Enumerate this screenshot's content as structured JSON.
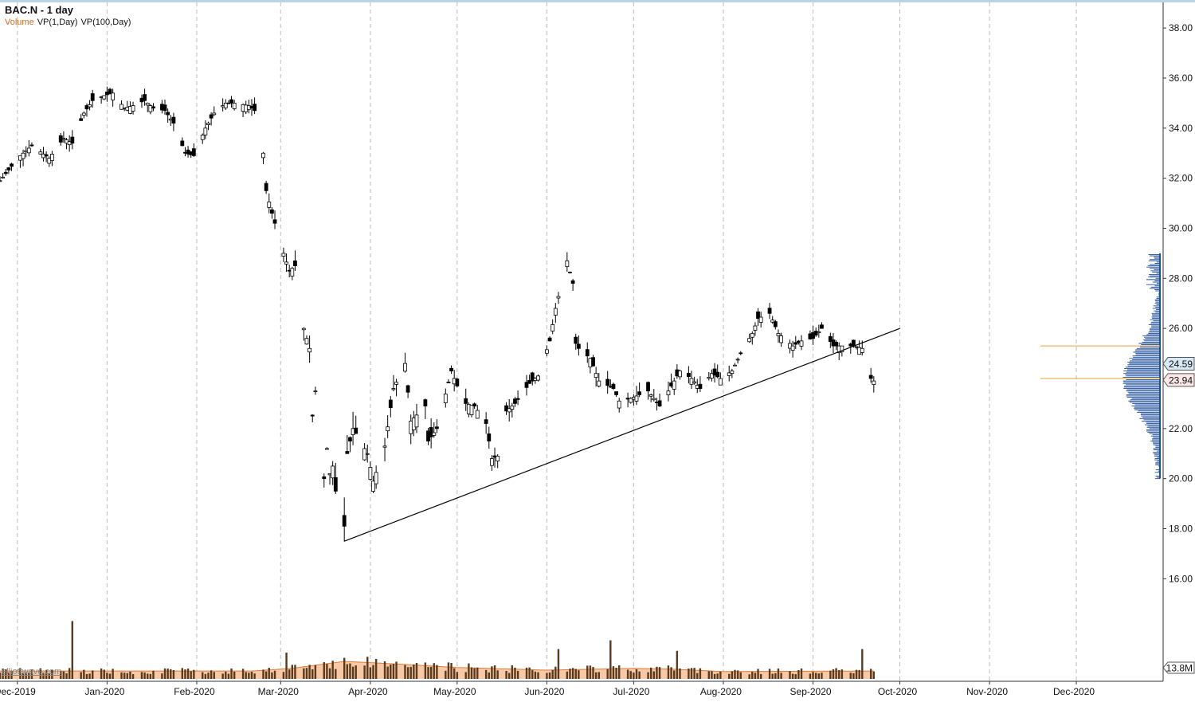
{
  "header": {
    "symbol_title": "BAC.N - 1 day",
    "indicators": [
      {
        "label": "Volume",
        "color": "#d2691e"
      },
      {
        "label": "VP(1,Day)",
        "color": "#111111"
      },
      {
        "label": "VP(100,Day)",
        "color": "#111111"
      }
    ]
  },
  "watermark": "elliottwave.com",
  "colors": {
    "up_candle": "#ffffff",
    "down_candle": "#000000",
    "wick": "#000000",
    "grid": "#bdbdbd",
    "volume_bar": "#5a3a1e",
    "volume_ma_fill": "#f7c9a6",
    "volume_ma_line": "#e07b39",
    "profile": "#1f4e9a",
    "profile_poc": "#e8a03a",
    "trendline": "#000000",
    "price_tag_bg": "#d9e8f5",
    "current_tag_bg": "#fde7e7"
  },
  "chart_data": {
    "type": "candlestick",
    "title": "BAC.N - 1 day",
    "y_axis": {
      "position": "right",
      "min": 12.0,
      "max": 38.8,
      "ticks": [
        "38.00",
        "36.00",
        "34.00",
        "32.00",
        "30.00",
        "28.00",
        "26.00",
        "24.00",
        "22.00",
        "20.00",
        "18.00",
        "16.00"
      ]
    },
    "x_axis": {
      "start": "2019-11-25",
      "end": "2020-12-31",
      "ticks": [
        {
          "label": "Dec-2019",
          "date": "2019-12-01"
        },
        {
          "label": "Jan-2020",
          "date": "2020-01-01"
        },
        {
          "label": "Feb-2020",
          "date": "2020-02-01"
        },
        {
          "label": "Mar-2020",
          "date": "2020-03-01"
        },
        {
          "label": "Apr-2020",
          "date": "2020-04-01"
        },
        {
          "label": "May-2020",
          "date": "2020-05-01"
        },
        {
          "label": "Jun-2020",
          "date": "2020-06-01"
        },
        {
          "label": "Jul-2020",
          "date": "2020-07-01"
        },
        {
          "label": "Aug-2020",
          "date": "2020-08-01"
        },
        {
          "label": "Sep-2020",
          "date": "2020-09-01"
        },
        {
          "label": "Oct-2020",
          "date": "2020-10-01"
        },
        {
          "label": "Nov-2020",
          "date": "2020-11-01"
        },
        {
          "label": "Dec-2020",
          "date": "2020-12-01"
        }
      ],
      "dashed_gridlines": true
    },
    "price_anchors": [
      [
        "2019-11-25",
        31.9
      ],
      [
        "2019-12-02",
        32.9
      ],
      [
        "2019-12-06",
        33.3
      ],
      [
        "2019-12-12",
        32.8
      ],
      [
        "2019-12-17",
        33.6
      ],
      [
        "2019-12-20",
        33.4
      ],
      [
        "2019-12-24",
        34.6
      ],
      [
        "2019-12-27",
        35.1
      ],
      [
        "2019-12-31",
        35.3
      ],
      [
        "2020-01-03",
        35.4
      ],
      [
        "2020-01-07",
        34.8
      ],
      [
        "2020-01-10",
        34.9
      ],
      [
        "2020-01-14",
        35.1
      ],
      [
        "2020-01-17",
        34.8
      ],
      [
        "2020-01-21",
        34.7
      ],
      [
        "2020-01-24",
        34.2
      ],
      [
        "2020-01-28",
        33.0
      ],
      [
        "2020-01-31",
        32.9
      ],
      [
        "2020-02-04",
        34.0
      ],
      [
        "2020-02-07",
        34.6
      ],
      [
        "2020-02-11",
        35.0
      ],
      [
        "2020-02-14",
        35.0
      ],
      [
        "2020-02-19",
        34.9
      ],
      [
        "2020-02-21",
        34.7
      ],
      [
        "2020-02-24",
        33.0
      ],
      [
        "2020-02-25",
        31.5
      ],
      [
        "2020-02-27",
        30.6
      ],
      [
        "2020-03-02",
        29.0
      ],
      [
        "2020-03-04",
        28.3
      ],
      [
        "2020-03-06",
        28.5
      ],
      [
        "2020-03-09",
        26.0
      ],
      [
        "2020-03-11",
        25.2
      ],
      [
        "2020-03-12",
        22.5
      ],
      [
        "2020-03-13",
        23.5
      ],
      [
        "2020-03-16",
        20.0
      ],
      [
        "2020-03-17",
        21.2
      ],
      [
        "2020-03-18",
        20.2
      ],
      [
        "2020-03-19",
        20.5
      ],
      [
        "2020-03-20",
        19.5
      ],
      [
        "2020-03-23",
        18.1
      ],
      [
        "2020-03-24",
        21.0
      ],
      [
        "2020-03-26",
        22.0
      ],
      [
        "2020-03-31",
        21.0
      ],
      [
        "2020-04-02",
        19.9
      ],
      [
        "2020-04-06",
        21.3
      ],
      [
        "2020-04-09",
        23.6
      ],
      [
        "2020-04-13",
        24.6
      ],
      [
        "2020-04-15",
        22.3
      ],
      [
        "2020-04-20",
        22.9
      ],
      [
        "2020-04-21",
        21.5
      ],
      [
        "2020-04-24",
        22.0
      ],
      [
        "2020-04-29",
        24.3
      ],
      [
        "2020-05-01",
        23.7
      ],
      [
        "2020-05-04",
        23.0
      ],
      [
        "2020-05-07",
        22.9
      ],
      [
        "2020-05-11",
        22.2
      ],
      [
        "2020-05-13",
        20.8
      ],
      [
        "2020-05-15",
        20.9
      ],
      [
        "2020-05-18",
        22.7
      ],
      [
        "2020-05-21",
        23.0
      ],
      [
        "2020-05-26",
        23.8
      ],
      [
        "2020-05-29",
        24.1
      ],
      [
        "2020-06-02",
        25.5
      ],
      [
        "2020-06-04",
        26.8
      ],
      [
        "2020-06-08",
        28.7
      ],
      [
        "2020-06-10",
        27.8
      ],
      [
        "2020-06-11",
        25.4
      ],
      [
        "2020-06-12",
        25.2
      ],
      [
        "2020-06-16",
        24.8
      ],
      [
        "2020-06-19",
        23.9
      ],
      [
        "2020-06-24",
        23.6
      ],
      [
        "2020-06-26",
        23.1
      ],
      [
        "2020-06-30",
        23.2
      ],
      [
        "2020-07-06",
        23.5
      ],
      [
        "2020-07-10",
        22.9
      ],
      [
        "2020-07-14",
        23.7
      ],
      [
        "2020-07-17",
        24.3
      ],
      [
        "2020-07-21",
        24.0
      ],
      [
        "2020-07-24",
        23.6
      ],
      [
        "2020-07-28",
        24.2
      ],
      [
        "2020-07-31",
        24.0
      ],
      [
        "2020-08-04",
        24.3
      ],
      [
        "2020-08-07",
        25.0
      ],
      [
        "2020-08-11",
        25.8
      ],
      [
        "2020-08-13",
        26.4
      ],
      [
        "2020-08-17",
        26.6
      ],
      [
        "2020-08-20",
        25.8
      ],
      [
        "2020-08-25",
        25.3
      ],
      [
        "2020-08-28",
        25.5
      ],
      [
        "2020-09-01",
        25.6
      ],
      [
        "2020-09-04",
        26.0
      ],
      [
        "2020-09-08",
        25.3
      ],
      [
        "2020-09-11",
        25.3
      ],
      [
        "2020-09-15",
        25.3
      ],
      [
        "2020-09-18",
        25.2
      ],
      [
        "2020-09-21",
        24.0
      ],
      [
        "2020-09-22",
        23.9
      ]
    ],
    "volume": {
      "ma_anchors": [
        [
          "2019-11-25",
          0.45
        ],
        [
          "2020-02-20",
          0.45
        ],
        [
          "2020-03-05",
          0.6
        ],
        [
          "2020-03-23",
          1.0
        ],
        [
          "2020-04-10",
          0.85
        ],
        [
          "2020-05-01",
          0.65
        ],
        [
          "2020-06-01",
          0.5
        ],
        [
          "2020-07-01",
          0.6
        ],
        [
          "2020-07-15",
          0.55
        ],
        [
          "2020-08-01",
          0.42
        ],
        [
          "2020-09-22",
          0.45
        ]
      ],
      "spikes": [
        [
          "2019-12-20",
          3.3
        ],
        [
          "2020-03-03",
          1.5
        ],
        [
          "2020-06-05",
          1.7
        ],
        [
          "2020-06-23",
          2.2
        ],
        [
          "2020-07-16",
          1.6
        ],
        [
          "2020-09-18",
          1.7
        ]
      ],
      "last_label": "13.8M"
    },
    "volume_profile": {
      "min_price": 20.0,
      "max_price": 29.0,
      "peak_price": 23.94,
      "value_lines": [
        25.3,
        24.0
      ]
    },
    "trendline": {
      "from": [
        "2020-03-23",
        17.5
      ],
      "to": [
        "2020-10-01",
        26.0
      ]
    },
    "price_tags": [
      {
        "label": "24.59",
        "value": 24.59,
        "style": "value-area"
      },
      {
        "label": "23.94",
        "value": 23.94,
        "style": "current"
      }
    ]
  }
}
